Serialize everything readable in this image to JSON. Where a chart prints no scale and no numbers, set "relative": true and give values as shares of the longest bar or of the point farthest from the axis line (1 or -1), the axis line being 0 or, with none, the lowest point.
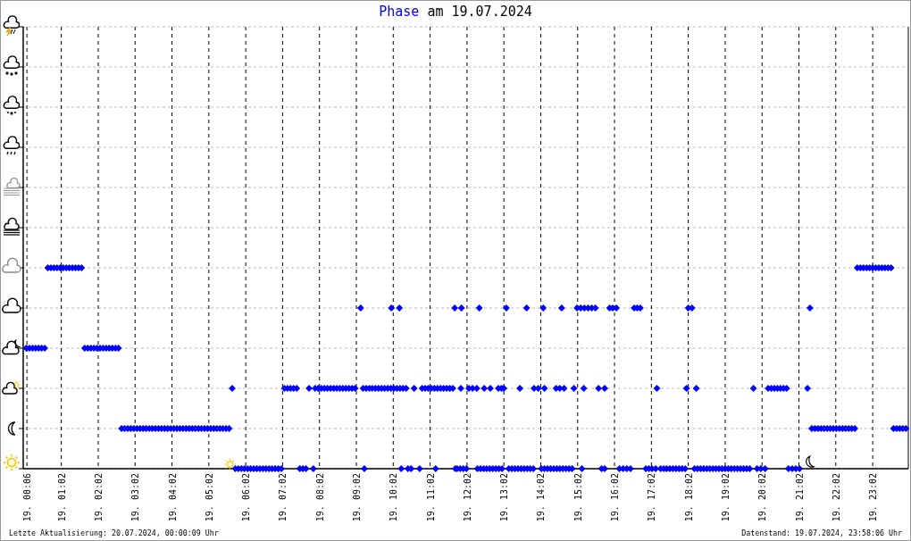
{
  "chart_data": {
    "type": "scatter",
    "title": "Phase am 19.07.2024",
    "annotations": [
      "Letzte Aktualisierung: 20.07.2024, 00:00:09 Uhr",
      "Datenstand: 19.07.2024, 23:58:06 Uhr"
    ],
    "xlim": [
      "2024-07-19T00:00",
      "2024-07-20T00:00"
    ],
    "xticks": [
      {
        "value": "2024-07-19T00:06",
        "label": "19. 00:06"
      },
      {
        "value": "2024-07-19T01:02",
        "label": "19. 01:02"
      },
      {
        "value": "2024-07-19T02:02",
        "label": "19. 02:02"
      },
      {
        "value": "2024-07-19T03:02",
        "label": "19. 03:02"
      },
      {
        "value": "2024-07-19T04:02",
        "label": "19. 04:02"
      },
      {
        "value": "2024-07-19T05:02",
        "label": "19. 05:02"
      },
      {
        "value": "2024-07-19T06:02",
        "label": "19. 06:02"
      },
      {
        "value": "2024-07-19T07:02",
        "label": "19. 07:02"
      },
      {
        "value": "2024-07-19T08:02",
        "label": "19. 08:02"
      },
      {
        "value": "2024-07-19T09:02",
        "label": "19. 09:02"
      },
      {
        "value": "2024-07-19T10:02",
        "label": "19. 10:02"
      },
      {
        "value": "2024-07-19T11:02",
        "label": "19. 11:02"
      },
      {
        "value": "2024-07-19T12:02",
        "label": "19. 12:02"
      },
      {
        "value": "2024-07-19T13:02",
        "label": "19. 13:02"
      },
      {
        "value": "2024-07-19T14:02",
        "label": "19. 14:02"
      },
      {
        "value": "2024-07-19T15:02",
        "label": "19. 15:02"
      },
      {
        "value": "2024-07-19T16:02",
        "label": "19. 16:02"
      },
      {
        "value": "2024-07-19T17:02",
        "label": "19. 17:02"
      },
      {
        "value": "2024-07-19T18:02",
        "label": "19. 18:02"
      },
      {
        "value": "2024-07-19T19:02",
        "label": "19. 19:02"
      },
      {
        "value": "2024-07-19T20:02",
        "label": "19. 20:02"
      },
      {
        "value": "2024-07-19T21:02",
        "label": "19. 21:02"
      },
      {
        "value": "2024-07-19T22:02",
        "label": "19. 22:02"
      },
      {
        "value": "2024-07-19T23:02",
        "label": "19. 23:02"
      }
    ],
    "relative": true,
    "tick_labels": "x",
    "grid": true,
    "marker": "diamond",
    "color": "#0000ff",
    "x": [
      "2024-07-19T00:05",
      "2024-07-19T00:10",
      "2024-07-19T00:15",
      "2024-07-19T00:20",
      "2024-07-19T00:25",
      "2024-07-19T00:30",
      "2024-07-19T00:35",
      "2024-07-19T00:40",
      "2024-07-19T00:45",
      "2024-07-19T00:50",
      "2024-07-19T00:55",
      "2024-07-19T01:00",
      "2024-07-19T01:05",
      "2024-07-19T01:10",
      "2024-07-19T01:15",
      "2024-07-19T01:20",
      "2024-07-19T01:25",
      "2024-07-19T01:30",
      "2024-07-19T01:35",
      "2024-07-19T01:40",
      "2024-07-19T01:45",
      "2024-07-19T01:50",
      "2024-07-19T01:55",
      "2024-07-19T02:00",
      "2024-07-19T02:05",
      "2024-07-19T02:10",
      "2024-07-19T02:15",
      "2024-07-19T02:20",
      "2024-07-19T02:25",
      "2024-07-19T02:30",
      "2024-07-19T02:35",
      "2024-07-19T02:40",
      "2024-07-19T02:45",
      "2024-07-19T02:50",
      "2024-07-19T02:55",
      "2024-07-19T03:00",
      "2024-07-19T03:05",
      "2024-07-19T03:10",
      "2024-07-19T03:15",
      "2024-07-19T03:20",
      "2024-07-19T03:25",
      "2024-07-19T03:30",
      "2024-07-19T03:35",
      "2024-07-19T03:40",
      "2024-07-19T03:45",
      "2024-07-19T03:50",
      "2024-07-19T03:55",
      "2024-07-19T04:00",
      "2024-07-19T04:05",
      "2024-07-19T04:10",
      "2024-07-19T04:15",
      "2024-07-19T04:20",
      "2024-07-19T04:25",
      "2024-07-19T04:30",
      "2024-07-19T04:35",
      "2024-07-19T04:40",
      "2024-07-19T04:45",
      "2024-07-19T04:50",
      "2024-07-19T04:55",
      "2024-07-19T05:00",
      "2024-07-19T05:05",
      "2024-07-19T05:10",
      "2024-07-19T05:15",
      "2024-07-19T05:20",
      "2024-07-19T05:25",
      "2024-07-19T05:30",
      "2024-07-19T05:35",
      "2024-07-19T05:40",
      "2024-07-19T05:45",
      "2024-07-19T05:50",
      "2024-07-19T05:55",
      "2024-07-19T06:00",
      "2024-07-19T06:05",
      "2024-07-19T06:10",
      "2024-07-19T06:15",
      "2024-07-19T06:20",
      "2024-07-19T06:25",
      "2024-07-19T06:30",
      "2024-07-19T06:35",
      "2024-07-19T06:40",
      "2024-07-19T06:45",
      "2024-07-19T06:50",
      "2024-07-19T06:55",
      "2024-07-19T07:00",
      "2024-07-19T07:05",
      "2024-07-19T07:10",
      "2024-07-19T07:15",
      "2024-07-19T07:20",
      "2024-07-19T07:25",
      "2024-07-19T07:30",
      "2024-07-19T07:35",
      "2024-07-19T07:40",
      "2024-07-19T07:45",
      "2024-07-19T07:52",
      "2024-07-19T07:55",
      "2024-07-19T08:00",
      "2024-07-19T08:05",
      "2024-07-19T08:10",
      "2024-07-19T08:15",
      "2024-07-19T08:20",
      "2024-07-19T08:25",
      "2024-07-19T08:30",
      "2024-07-19T08:35",
      "2024-07-19T08:40",
      "2024-07-19T08:45",
      "2024-07-19T08:50",
      "2024-07-19T08:55",
      "2024-07-19T09:00",
      "2024-07-19T09:09",
      "2024-07-19T09:13",
      "2024-07-19T09:15",
      "2024-07-19T09:18",
      "2024-07-19T09:23",
      "2024-07-19T09:28",
      "2024-07-19T09:33",
      "2024-07-19T09:38",
      "2024-07-19T09:43",
      "2024-07-19T09:48",
      "2024-07-19T09:53",
      "2024-07-19T09:58",
      "2024-07-19T09:59",
      "2024-07-19T10:03",
      "2024-07-19T10:08",
      "2024-07-19T10:12",
      "2024-07-19T10:13",
      "2024-07-19T10:15",
      "2024-07-19T10:18",
      "2024-07-19T10:23",
      "2024-07-19T10:26",
      "2024-07-19T10:31",
      "2024-07-19T10:36",
      "2024-07-19T10:45",
      "2024-07-19T10:49",
      "2024-07-19T10:54",
      "2024-07-19T10:59",
      "2024-07-19T11:04",
      "2024-07-19T11:09",
      "2024-07-19T11:11",
      "2024-07-19T11:14",
      "2024-07-19T11:19",
      "2024-07-19T11:24",
      "2024-07-19T11:29",
      "2024-07-19T11:34",
      "2024-07-19T11:39",
      "2024-07-19T11:42",
      "2024-07-19T11:43",
      "2024-07-19T11:46",
      "2024-07-19T11:51",
      "2024-07-19T11:52",
      "2024-07-19T11:53",
      "2024-07-19T11:56",
      "2024-07-19T12:01",
      "2024-07-19T12:05",
      "2024-07-19T12:11",
      "2024-07-19T12:18",
      "2024-07-19T12:19",
      "2024-07-19T12:22",
      "2024-07-19T12:24",
      "2024-07-19T12:29",
      "2024-07-19T12:30",
      "2024-07-19T12:34",
      "2024-07-19T12:39",
      "2024-07-19T12:40",
      "2024-07-19T12:44",
      "2024-07-19T12:49",
      "2024-07-19T12:53",
      "2024-07-19T12:54",
      "2024-07-19T12:58",
      "2024-07-19T12:59",
      "2024-07-19T13:02",
      "2024-07-19T13:06",
      "2024-07-19T13:10",
      "2024-07-19T13:15",
      "2024-07-19T13:20",
      "2024-07-19T13:25",
      "2024-07-19T13:28",
      "2024-07-19T13:30",
      "2024-07-19T13:35",
      "2024-07-19T13:39",
      "2024-07-19T13:40",
      "2024-07-19T13:45",
      "2024-07-19T13:50",
      "2024-07-19T13:51",
      "2024-07-19T13:58",
      "2024-07-19T14:03",
      "2024-07-19T14:06",
      "2024-07-19T14:08",
      "2024-07-19T14:08",
      "2024-07-19T14:13",
      "2024-07-19T14:18",
      "2024-07-19T14:23",
      "2024-07-19T14:27",
      "2024-07-19T14:28",
      "2024-07-19T14:33",
      "2024-07-19T14:33",
      "2024-07-19T14:36",
      "2024-07-19T14:38",
      "2024-07-19T14:40",
      "2024-07-19T14:43",
      "2024-07-19T14:48",
      "2024-07-19T14:53",
      "2024-07-19T14:56",
      "2024-07-19T15:01",
      "2024-07-19T15:07",
      "2024-07-19T15:09",
      "2024-07-19T15:12",
      "2024-07-19T15:13",
      "2024-07-19T15:19",
      "2024-07-19T15:25",
      "2024-07-19T15:31",
      "2024-07-19T15:36",
      "2024-07-19T15:41",
      "2024-07-19T15:46",
      "2024-07-19T15:46",
      "2024-07-19T15:54",
      "2024-07-19T15:59",
      "2024-07-19T16:05",
      "2024-07-19T16:10",
      "2024-07-19T16:16",
      "2024-07-19T16:22",
      "2024-07-19T16:28",
      "2024-07-19T16:34",
      "2024-07-19T16:39",
      "2024-07-19T16:44",
      "2024-07-19T16:53",
      "2024-07-19T16:58",
      "2024-07-19T17:03",
      "2024-07-19T17:09",
      "2024-07-19T17:11",
      "2024-07-19T17:17",
      "2024-07-19T17:22",
      "2024-07-19T17:27",
      "2024-07-19T17:32",
      "2024-07-19T17:37",
      "2024-07-19T17:42",
      "2024-07-19T17:47",
      "2024-07-19T17:52",
      "2024-07-19T17:57",
      "2024-07-19T17:59",
      "2024-07-19T18:02",
      "2024-07-19T18:08",
      "2024-07-19T18:12",
      "2024-07-19T18:15",
      "2024-07-19T18:17",
      "2024-07-19T18:22",
      "2024-07-19T18:27",
      "2024-07-19T18:32",
      "2024-07-19T18:37",
      "2024-07-19T18:42",
      "2024-07-19T18:47",
      "2024-07-19T18:52",
      "2024-07-19T18:57",
      "2024-07-19T19:02",
      "2024-07-19T19:07",
      "2024-07-19T19:12",
      "2024-07-19T19:17",
      "2024-07-19T19:22",
      "2024-07-19T19:27",
      "2024-07-19T19:32",
      "2024-07-19T19:37",
      "2024-07-19T19:42",
      "2024-07-19T19:48",
      "2024-07-19T19:54",
      "2024-07-19T20:00",
      "2024-07-19T20:07",
      "2024-07-19T20:12",
      "2024-07-19T20:17",
      "2024-07-19T20:22",
      "2024-07-19T20:27",
      "2024-07-19T20:32",
      "2024-07-19T20:37",
      "2024-07-19T20:42",
      "2024-07-19T20:45",
      "2024-07-19T20:51",
      "2024-07-19T20:57",
      "2024-07-19T21:03",
      "2024-07-19T21:16",
      "2024-07-19T21:20",
      "2024-07-19T21:23",
      "2024-07-19T21:28",
      "2024-07-19T21:33",
      "2024-07-19T21:38",
      "2024-07-19T21:43",
      "2024-07-19T21:48",
      "2024-07-19T21:53",
      "2024-07-19T21:58",
      "2024-07-19T22:03",
      "2024-07-19T22:08",
      "2024-07-19T22:13",
      "2024-07-19T22:18",
      "2024-07-19T22:23",
      "2024-07-19T22:28",
      "2024-07-19T22:33",
      "2024-07-19T22:37",
      "2024-07-19T22:42",
      "2024-07-19T22:47",
      "2024-07-19T22:52",
      "2024-07-19T22:57",
      "2024-07-19T23:02",
      "2024-07-19T23:07",
      "2024-07-19T23:12",
      "2024-07-19T23:17",
      "2024-07-19T23:22",
      "2024-07-19T23:27",
      "2024-07-19T23:32",
      "2024-07-19T23:36",
      "2024-07-19T23:41",
      "2024-07-19T23:46",
      "2024-07-19T23:51",
      "2024-07-19T23:56"
    ],
    "values": [
      0.6,
      0.6,
      0.6,
      0.6,
      0.6,
      0.6,
      0.6,
      1,
      1,
      1,
      1,
      1,
      1,
      1,
      1,
      1,
      1,
      1,
      1,
      0.6,
      0.6,
      0.6,
      0.6,
      0.6,
      0.6,
      0.6,
      0.6,
      0.6,
      0.6,
      0.6,
      0.6,
      0.2,
      0.2,
      0.2,
      0.2,
      0.2,
      0.2,
      0.2,
      0.2,
      0.2,
      0.2,
      0.2,
      0.2,
      0.2,
      0.2,
      0.2,
      0.2,
      0.2,
      0.2,
      0.2,
      0.2,
      0.2,
      0.2,
      0.2,
      0.2,
      0.2,
      0.2,
      0.2,
      0.2,
      0.2,
      0.2,
      0.2,
      0.2,
      0.2,
      0.2,
      0.2,
      0.2,
      0.4,
      0,
      0,
      0,
      0,
      0,
      0,
      0,
      0,
      0,
      0,
      0,
      0,
      0,
      0,
      0,
      0,
      0.4,
      0.4,
      0.4,
      0.4,
      0.4,
      0,
      0,
      0,
      0.4,
      0,
      0.4,
      0.4,
      0.4,
      0.4,
      0.4,
      0.4,
      0.4,
      0.4,
      0.4,
      0.4,
      0.4,
      0.4,
      0.4,
      0.4,
      0.8,
      0.4,
      0,
      0.4,
      0.4,
      0.4,
      0.4,
      0.4,
      0.4,
      0.4,
      0.4,
      0.4,
      0.8,
      0.4,
      0.4,
      0.8,
      0.4,
      0,
      0.4,
      0.4,
      0,
      0,
      0.4,
      0,
      0.4,
      0.4,
      0.4,
      0.4,
      0.4,
      0,
      0.4,
      0.4,
      0.4,
      0.4,
      0.4,
      0.4,
      0.8,
      0,
      0,
      0,
      0.4,
      0.8,
      0,
      0,
      0.4,
      0.4,
      0.4,
      0,
      0.8,
      0,
      0,
      0.4,
      0,
      0,
      0.4,
      0,
      0,
      0.4,
      0,
      0.4,
      0,
      0.4,
      0.8,
      0,
      0,
      0,
      0,
      0.4,
      0,
      0,
      0.8,
      0,
      0,
      0,
      0.4,
      0.4,
      0,
      0.8,
      0,
      0.4,
      0,
      0,
      0,
      0.4,
      0,
      0,
      0.4,
      0.8,
      0,
      0.4,
      0,
      0,
      0,
      0.4,
      0.8,
      0.8,
      0,
      0.4,
      0.8,
      0.8,
      0.8,
      0.8,
      0.4,
      0,
      0,
      0.4,
      0.8,
      0.8,
      0.8,
      0,
      0,
      0,
      0,
      0.8,
      0.8,
      0.8,
      0,
      0,
      0,
      0,
      0.4,
      0,
      0,
      0,
      0,
      0,
      0,
      0,
      0,
      0,
      0.4,
      0.8,
      0.8,
      0,
      0.4,
      0,
      0,
      0,
      0,
      0,
      0,
      0,
      0,
      0,
      0,
      0,
      0,
      0,
      0,
      0,
      0,
      0,
      0,
      0.4,
      0,
      0,
      0,
      0.4,
      0.4,
      0.4,
      0.4,
      0.4,
      0.4,
      0.4,
      0,
      0,
      0,
      0,
      0.4,
      0.8,
      0.2,
      0.2,
      0.2,
      0.2,
      0.2,
      0.2,
      0.2,
      0.2,
      0.2,
      0.2,
      0.2,
      0.2,
      0.2,
      0.2,
      0.2,
      1,
      1,
      1,
      1,
      1,
      1,
      1,
      1,
      1,
      1,
      1,
      1,
      0.2,
      0.2,
      0.2,
      0.2,
      0.2
    ]
  }
}
